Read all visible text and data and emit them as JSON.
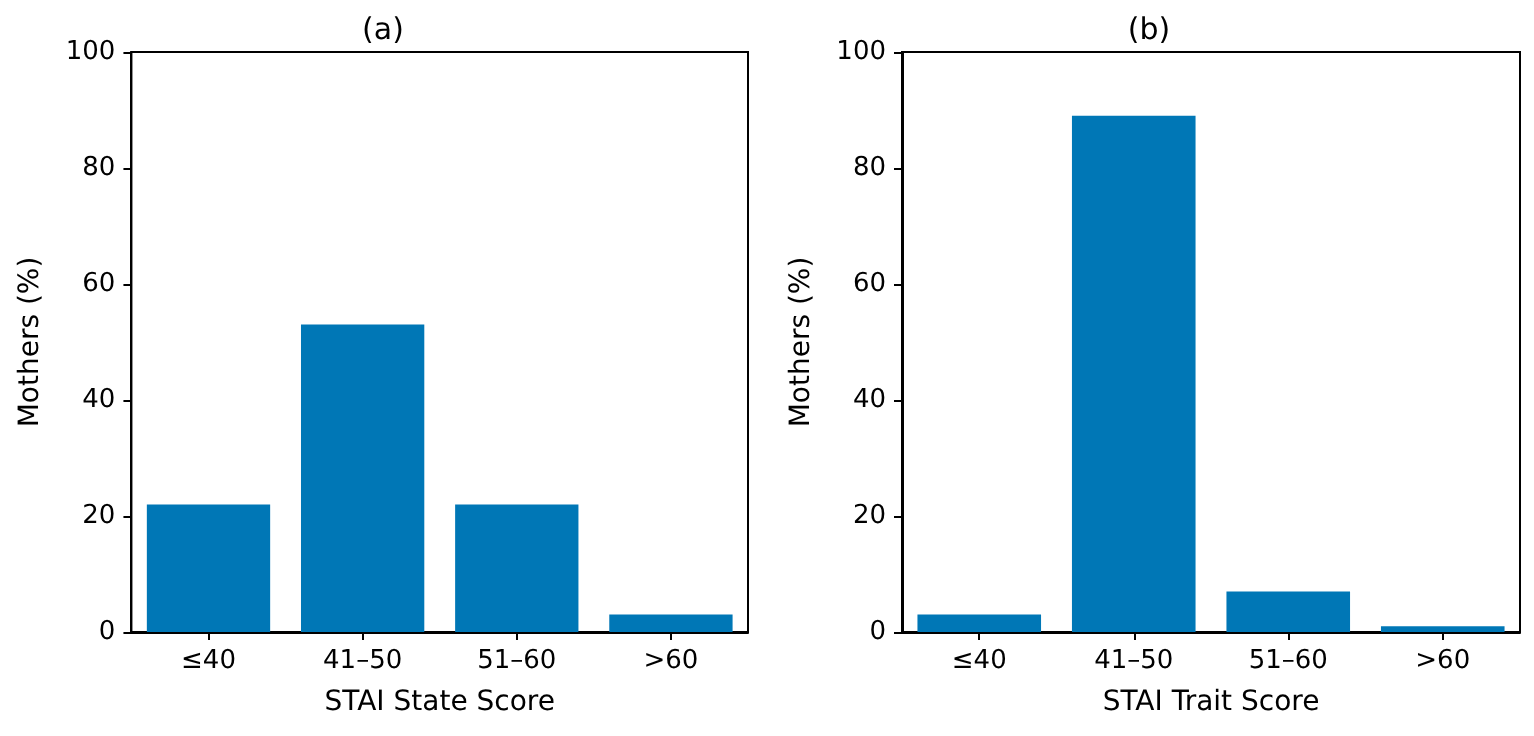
{
  "chart_data": [
    {
      "type": "bar",
      "title": "(a)",
      "xlabel": "STAI State Score",
      "ylabel": "Mothers (%)",
      "categories": [
        "≤40",
        "41–50",
        "51–60",
        ">60"
      ],
      "values": [
        22,
        53,
        22,
        3
      ],
      "color": "#0077b6",
      "ylim": [
        0,
        100
      ],
      "yticks": [
        0,
        20,
        40,
        60,
        80,
        100
      ],
      "grid": false
    },
    {
      "type": "bar",
      "title": "(b)",
      "xlabel": "STAI Trait Score",
      "ylabel": "Mothers (%)",
      "categories": [
        "≤40",
        "41–50",
        "51–60",
        ">60"
      ],
      "values": [
        3,
        89,
        7,
        1
      ],
      "color": "#0077b6",
      "ylim": [
        0,
        100
      ],
      "yticks": [
        0,
        20,
        40,
        60,
        80,
        100
      ],
      "grid": false
    }
  ]
}
